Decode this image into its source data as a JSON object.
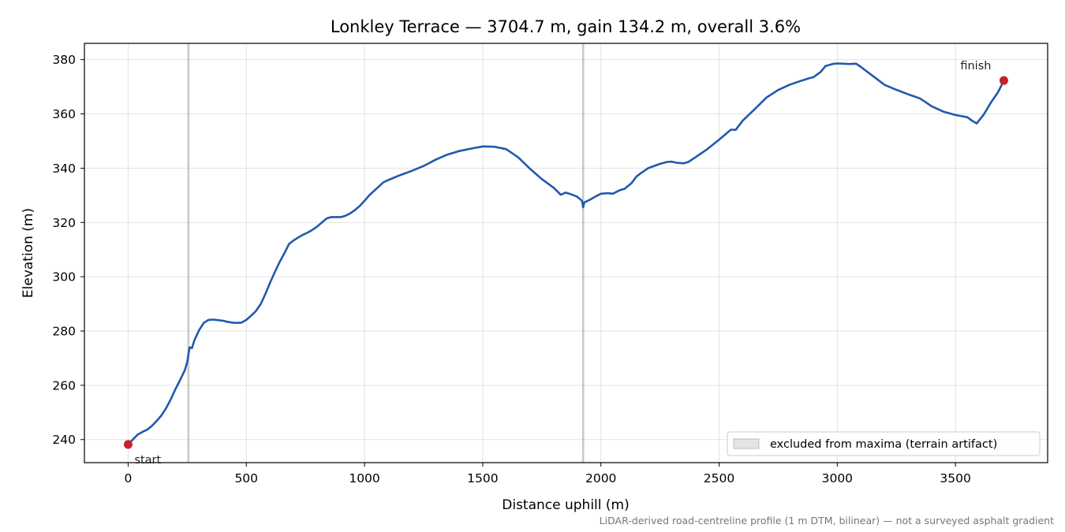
{
  "chart_data": {
    "type": "line",
    "title": "Lonkley Terrace — 3704.7 m, gain 134.2 m, overall 3.6%",
    "xlabel": "Distance uphill (m)",
    "ylabel": "Elevation (m)",
    "xlim": [
      -185,
      3890
    ],
    "ylim": [
      231.5,
      386
    ],
    "xticks": [
      0,
      500,
      1000,
      1500,
      2000,
      2500,
      3000,
      3500
    ],
    "yticks": [
      240,
      260,
      280,
      300,
      320,
      340,
      360,
      380
    ],
    "grid": true,
    "legend": {
      "placement": "lower-right",
      "entries": [
        "excluded from maxima (terrain artifact)"
      ]
    },
    "excluded_markers_x": [
      255,
      1925
    ],
    "series": [
      {
        "color": "#1f5aad",
        "x": [
          0,
          20,
          40,
          60,
          80,
          100,
          120,
          140,
          160,
          180,
          200,
          220,
          240,
          250,
          260,
          270,
          280,
          300,
          320,
          340,
          360,
          380,
          400,
          420,
          440,
          460,
          480,
          500,
          520,
          540,
          560,
          580,
          600,
          620,
          640,
          660,
          680,
          700,
          720,
          740,
          760,
          780,
          800,
          820,
          840,
          860,
          880,
          900,
          920,
          940,
          960,
          980,
          1000,
          1020,
          1040,
          1060,
          1080,
          1100,
          1150,
          1200,
          1250,
          1300,
          1350,
          1400,
          1450,
          1500,
          1550,
          1600,
          1650,
          1700,
          1750,
          1800,
          1830,
          1850,
          1870,
          1900,
          1920,
          1925,
          1930,
          1950,
          1980,
          2000,
          2030,
          2050,
          2080,
          2100,
          2130,
          2150,
          2170,
          2200,
          2250,
          2280,
          2300,
          2320,
          2350,
          2370,
          2400,
          2450,
          2500,
          2550,
          2570,
          2600,
          2650,
          2700,
          2750,
          2800,
          2850,
          2880,
          2900,
          2930,
          2950,
          2980,
          3000,
          3050,
          3080,
          3100,
          3150,
          3200,
          3250,
          3300,
          3350,
          3400,
          3450,
          3500,
          3550,
          3570,
          3590,
          3620,
          3650,
          3680,
          3704.7
        ],
        "y": [
          238.2,
          240.0,
          241.8,
          242.8,
          243.6,
          245.0,
          246.8,
          248.8,
          251.5,
          254.8,
          258.6,
          262.0,
          265.6,
          268.5,
          274.0,
          273.7,
          276.5,
          280.3,
          283.0,
          284.1,
          284.2,
          284.0,
          283.8,
          283.4,
          283.1,
          283.0,
          283.1,
          284.1,
          285.6,
          287.3,
          289.8,
          293.5,
          297.7,
          301.6,
          305.3,
          308.5,
          312.0,
          313.4,
          314.5,
          315.5,
          316.3,
          317.3,
          318.5,
          320.0,
          321.5,
          322.0,
          322.0,
          322.0,
          322.5,
          323.4,
          324.6,
          326.1,
          328.0,
          330.0,
          331.6,
          333.2,
          334.8,
          335.6,
          337.4,
          339.0,
          340.8,
          343.1,
          345.0,
          346.3,
          347.2,
          348.0,
          347.9,
          347.0,
          344.0,
          339.8,
          336.0,
          332.8,
          330.2,
          331.0,
          330.5,
          329.5,
          328.0,
          325.6,
          327.4,
          328.2,
          329.7,
          330.6,
          330.8,
          330.6,
          331.9,
          332.4,
          334.5,
          336.9,
          338.2,
          340.0,
          341.6,
          342.3,
          342.4,
          342.0,
          341.8,
          342.3,
          344.0,
          347.0,
          350.5,
          354.2,
          354.1,
          357.5,
          361.7,
          366.0,
          368.8,
          370.8,
          372.3,
          373.1,
          373.6,
          375.5,
          377.6,
          378.4,
          378.6,
          378.4,
          378.5,
          377.3,
          374.0,
          370.7,
          368.9,
          367.2,
          365.7,
          362.8,
          360.8,
          359.6,
          358.8,
          357.5,
          356.5,
          359.8,
          364.2,
          368.0,
          372.3
        ]
      }
    ],
    "annotations": [
      {
        "label": "start",
        "x": 0,
        "y": 238.2
      },
      {
        "label": "finish",
        "x": 3704.7,
        "y": 372.3
      }
    ],
    "marker_color": "#c7202f",
    "footnote": "LiDAR-derived road-centreline profile (1 m DTM, bilinear) — not a surveyed asphalt gradient"
  }
}
